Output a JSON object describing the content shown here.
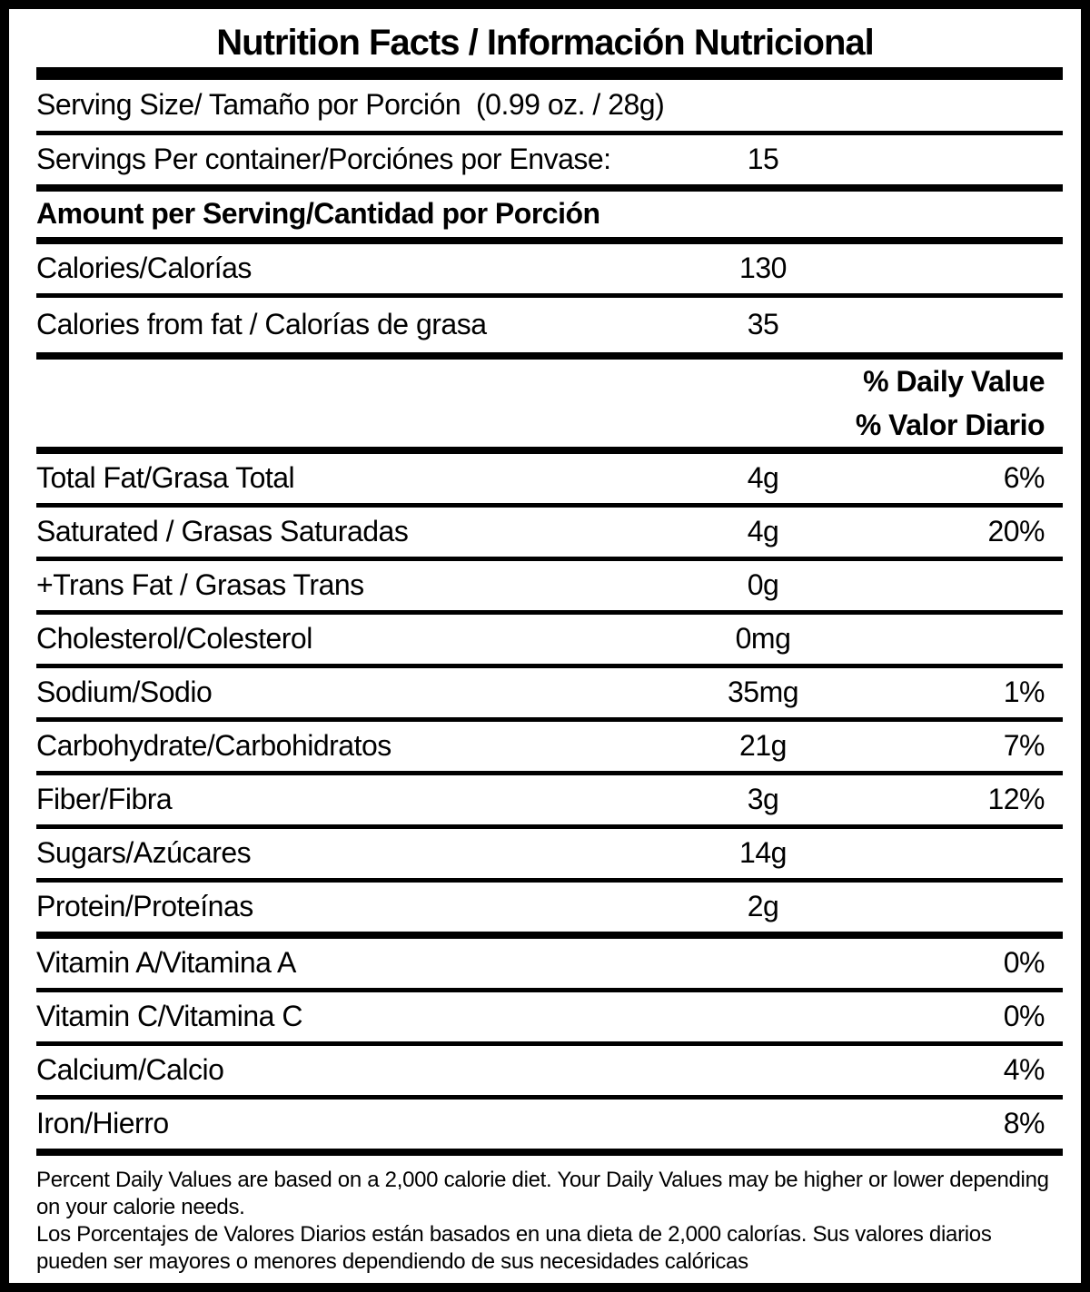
{
  "title": "Nutrition Facts / Información Nutricional",
  "serving_size_line": "Serving Size/ Tamaño por Porción  (0.99 oz. / 28g)",
  "servings_row": {
    "label": "Servings Per container/Porciónes por Envase:",
    "value": "15"
  },
  "amount_header": "Amount per Serving/Cantidad por Porción",
  "calories_row": {
    "label": "Calories/Calorías",
    "value": "130"
  },
  "calories_fat_row": {
    "label": "Calories from fat / Calorías de grasa",
    "value": "35"
  },
  "dv_header": {
    "line1": "% Daily Value",
    "line2": "% Valor Diario"
  },
  "nutrients": [
    {
      "label": "Total Fat/Grasa Total",
      "amount": "4g",
      "dv": "6%"
    },
    {
      "label": "Saturated / Grasas Saturadas",
      "amount": "4g",
      "dv": "20%"
    },
    {
      "label": "+Trans Fat / Grasas Trans",
      "amount": "0g",
      "dv": ""
    },
    {
      "label": "Cholesterol/Colesterol",
      "amount": "0mg",
      "dv": ""
    },
    {
      "label": "Sodium/Sodio",
      "amount": "35mg",
      "dv": "1%"
    },
    {
      "label": "Carbohydrate/Carbohidratos",
      "amount": "21g",
      "dv": "7%"
    },
    {
      "label": "Fiber/Fibra",
      "amount": "3g",
      "dv": "12%"
    },
    {
      "label": "Sugars/Azúcares",
      "amount": "14g",
      "dv": ""
    },
    {
      "label": "Protein/Proteínas",
      "amount": "2g",
      "dv": ""
    }
  ],
  "micronutrients": [
    {
      "label": "Vitamin A/Vitamina A",
      "dv": "0%"
    },
    {
      "label": "Vitamin C/Vitamina C",
      "dv": "0%"
    },
    {
      "label": "Calcium/Calcio",
      "dv": "4%"
    },
    {
      "label": "Iron/Hierro",
      "dv": "8%"
    }
  ],
  "footnote_en": "Percent Daily Values are based on a 2,000 calorie diet. Your Daily Values may be higher or lower depending on your calorie needs.",
  "footnote_es": "Los Porcentajes de Valores Diarios están basados en una dieta de 2,000 calorías. Sus valores diarios pueden ser mayores o menores dependiendo de sus necesidades calóricas",
  "colors": {
    "ink": "#000000",
    "background": "#ffffff"
  }
}
